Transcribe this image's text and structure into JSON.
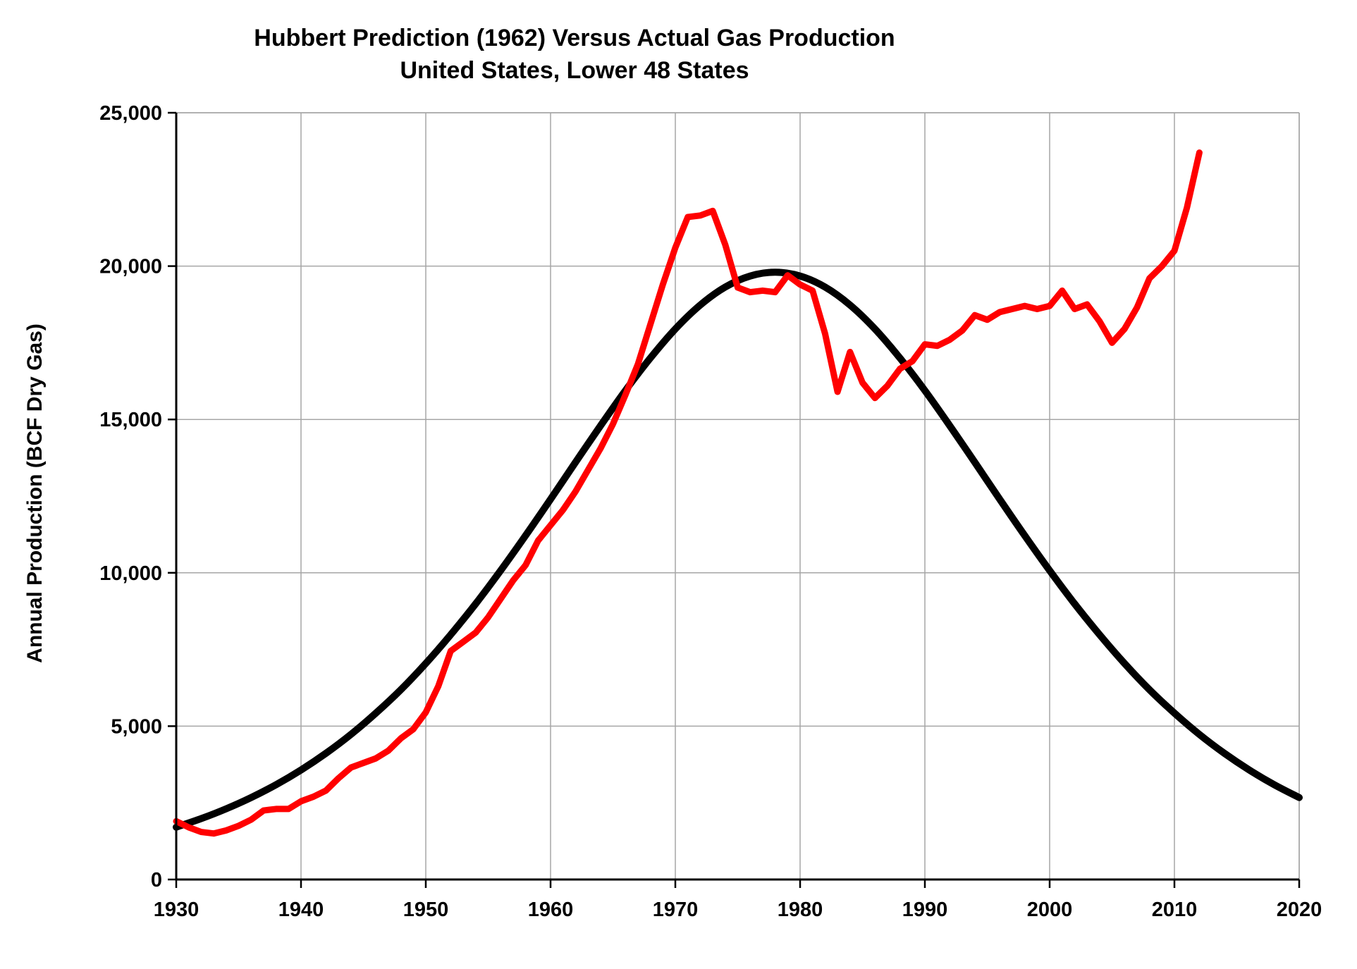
{
  "title": {
    "line1": "Hubbert Prediction (1962) Versus Actual Gas Production",
    "line2": "United States, Lower 48 States"
  },
  "chart_data": {
    "type": "line",
    "title": "Hubbert Prediction (1962) Versus Actual Gas Production — United States, Lower 48 States",
    "xlabel": "",
    "ylabel": "Annual Production (BCF Dry Gas)",
    "xlim": [
      1930,
      2020
    ],
    "ylim": [
      0,
      25000
    ],
    "grid": true,
    "legend": "none",
    "x_ticks": {
      "values": [
        1930,
        1940,
        1950,
        1960,
        1970,
        1980,
        1990,
        2000,
        2010,
        2020
      ],
      "labels": [
        "1930",
        "1940",
        "1950",
        "1960",
        "1970",
        "1980",
        "1990",
        "2000",
        "2010",
        "2020"
      ]
    },
    "y_ticks": {
      "values": [
        0,
        5000,
        10000,
        15000,
        20000,
        25000
      ],
      "labels": [
        "0",
        "5,000",
        "10,000",
        "15,000",
        "20,000",
        "25,000"
      ]
    },
    "series": [
      {
        "name": "Hubbert Prediction (1962)",
        "color": "#000000",
        "smooth": true,
        "x": [
          1930,
          1932,
          1934,
          1936,
          1938,
          1940,
          1942,
          1944,
          1946,
          1948,
          1950,
          1952,
          1954,
          1956,
          1958,
          1960,
          1962,
          1964,
          1966,
          1968,
          1970,
          1972,
          1974,
          1976,
          1978,
          1980,
          1982,
          1984,
          1986,
          1988,
          1990,
          1992,
          1994,
          1996,
          1998,
          2000,
          2002,
          2004,
          2006,
          2008,
          2010,
          2012,
          2014,
          2016,
          2018,
          2020
        ],
        "values": [
          1707,
          1985,
          2305,
          2672,
          3091,
          3571,
          4116,
          4731,
          5425,
          6188,
          7046,
          7984,
          8990,
          10074,
          11215,
          12398,
          13604,
          14793,
          15942,
          17003,
          17951,
          18732,
          19317,
          19677,
          19800,
          19677,
          19317,
          18732,
          17951,
          17003,
          15942,
          14793,
          13604,
          12398,
          11215,
          10074,
          8990,
          7984,
          7046,
          6188,
          5425,
          4731,
          4116,
          3571,
          3091,
          2672
        ]
      },
      {
        "name": "Actual Gas Production",
        "color": "#ff0000",
        "smooth": false,
        "x": [
          1930,
          1931,
          1932,
          1933,
          1934,
          1935,
          1936,
          1937,
          1938,
          1939,
          1940,
          1941,
          1942,
          1943,
          1944,
          1945,
          1946,
          1947,
          1948,
          1949,
          1950,
          1951,
          1952,
          1953,
          1954,
          1955,
          1956,
          1957,
          1958,
          1959,
          1960,
          1961,
          1962,
          1963,
          1964,
          1965,
          1966,
          1967,
          1968,
          1969,
          1970,
          1971,
          1972,
          1973,
          1974,
          1975,
          1976,
          1977,
          1978,
          1979,
          1980,
          1981,
          1982,
          1983,
          1984,
          1985,
          1986,
          1987,
          1988,
          1989,
          1990,
          1991,
          1992,
          1993,
          1994,
          1995,
          1996,
          1997,
          1998,
          1999,
          2000,
          2001,
          2002,
          2003,
          2004,
          2005,
          2006,
          2007,
          2008,
          2009,
          2010,
          2011,
          2012
        ],
        "values": [
          1900,
          1700,
          1550,
          1500,
          1600,
          1750,
          1950,
          2250,
          2300,
          2300,
          2550,
          2700,
          2900,
          3300,
          3650,
          3800,
          3950,
          4200,
          4600,
          4900,
          5450,
          6300,
          7450,
          7750,
          8050,
          8550,
          9150,
          9750,
          10250,
          11050,
          11550,
          12050,
          12650,
          13350,
          14050,
          14850,
          15800,
          16800,
          18100,
          19400,
          20600,
          21600,
          21650,
          21800,
          20700,
          19300,
          19150,
          19200,
          19150,
          19700,
          19400,
          19200,
          17800,
          15900,
          17200,
          16200,
          15700,
          16100,
          16650,
          16900,
          17450,
          17400,
          17600,
          17900,
          18400,
          18250,
          18500,
          18600,
          18700,
          18600,
          18700,
          19200,
          18600,
          18750,
          18200,
          17500,
          17950,
          18650,
          19600,
          20000,
          20500,
          21900,
          23700
        ]
      }
    ],
    "colors": {
      "grid": "#a6a6a6",
      "axis": "#000000",
      "prediction_line": "#000000",
      "actual_line": "#ff0000"
    }
  }
}
